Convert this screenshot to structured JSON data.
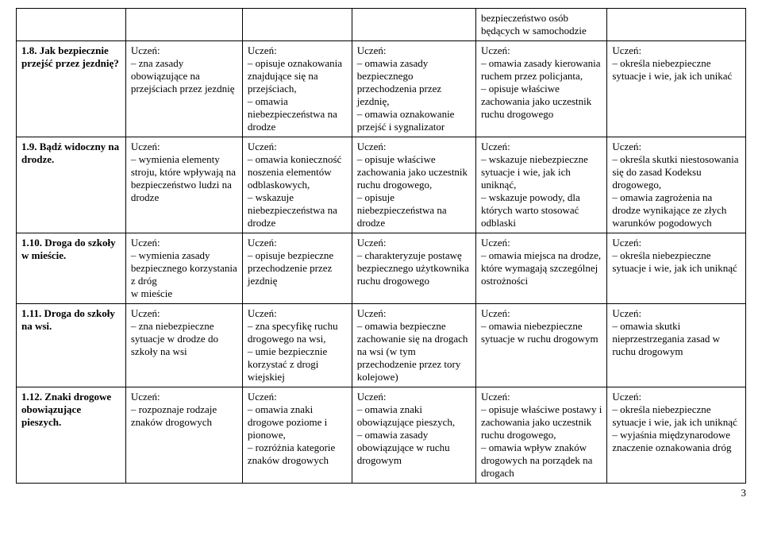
{
  "page_number": "3",
  "top_hanging": "bezpieczeństwo osób będących w samochodzie",
  "rows": [
    {
      "topic": "1.8. Jak bezpiecznie przejść przez jezdnię?",
      "c1": "Uczeń:\n– zna zasady obowiązujące na przejściach przez jezdnię",
      "c2": "Uczeń:\n– opisuje oznakowania znajdujące się na przejściach,\n– omawia niebezpieczeństwa na drodze",
      "c3": "Uczeń:\n– omawia zasady bezpiecznego przechodzenia przez jezdnię,\n– omawia oznakowanie przejść i sygnalizator",
      "c4": "Uczeń:\n– omawia zasady kierowania ruchem przez policjanta,\n– opisuje właściwe zachowania jako uczestnik ruchu drogowego",
      "c5": "Uczeń:\n– określa niebezpieczne sytuacje i wie, jak ich unikać"
    },
    {
      "topic": "1.9. Bądź widoczny na drodze.",
      "c1": "Uczeń:\n– wymienia elementy stroju, które wpływają na bezpieczeństwo ludzi na drodze",
      "c2": "Uczeń:\n– omawia konieczność noszenia elementów odblaskowych,\n– wskazuje niebezpieczeństwa na drodze",
      "c3": "Uczeń:\n– opisuje właściwe zachowania jako uczestnik ruchu drogowego,\n– opisuje niebezpieczeństwa na drodze",
      "c4": "Uczeń:\n– wskazuje niebezpieczne sytuacje i wie, jak ich uniknąć,\n– wskazuje powody, dla których warto stosować odblaski",
      "c5": "Uczeń:\n– określa skutki niestosowania się do zasad Kodeksu drogowego,\n– omawia zagrożenia na drodze wynikające ze złych warunków pogodowych"
    },
    {
      "topic": "1.10. Droga do szkoły w mieście.",
      "c1": "Uczeń:\n– wymienia zasady bezpiecznego korzystania z dróg\nw mieście",
      "c2": "Uczeń:\n– opisuje bezpieczne przechodzenie przez jezdnię",
      "c3": "Uczeń:\n– charakteryzuje postawę bezpiecznego użytkownika ruchu drogowego",
      "c4": "Uczeń:\n– omawia miejsca na drodze, które wymagają szczególnej ostrożności",
      "c5": "Uczeń:\n– określa niebezpieczne sytuacje i wie, jak ich uniknąć"
    },
    {
      "topic": "1.11. Droga do szkoły na wsi.",
      "c1": "Uczeń:\n– zna niebezpieczne sytuacje w drodze do szkoły na wsi",
      "c2": "Uczeń:\n– zna specyfikę ruchu drogowego na wsi,\n– umie bezpiecznie korzystać z drogi wiejskiej",
      "c3": "Uczeń:\n– omawia bezpieczne zachowanie się na drogach na wsi (w tym przechodzenie przez tory kolejowe)",
      "c4": "Uczeń:\n– omawia niebezpieczne sytuacje w ruchu drogowym",
      "c5": "Uczeń:\n– omawia skutki nieprzestrzegania zasad w ruchu drogowym"
    },
    {
      "topic": "1.12. Znaki drogowe obowiązujące pieszych.",
      "c1": "Uczeń:\n– rozpoznaje rodzaje znaków drogowych",
      "c2": "Uczeń:\n– omawia znaki drogowe poziome i pionowe,\n– rozróżnia kategorie znaków drogowych",
      "c3": "Uczeń:\n– omawia znaki obowiązujące pieszych,\n– omawia zasady obowiązujące w ruchu drogowym",
      "c4": "Uczeń:\n– opisuje właściwe postawy i zachowania jako uczestnik ruchu drogowego,\n– omawia wpływ znaków drogowych na porządek na drogach",
      "c5": "Uczeń:\n– określa niebezpieczne sytuacje i wie, jak ich uniknąć\n– wyjaśnia międzynarodowe znaczenie oznakowania dróg"
    }
  ]
}
